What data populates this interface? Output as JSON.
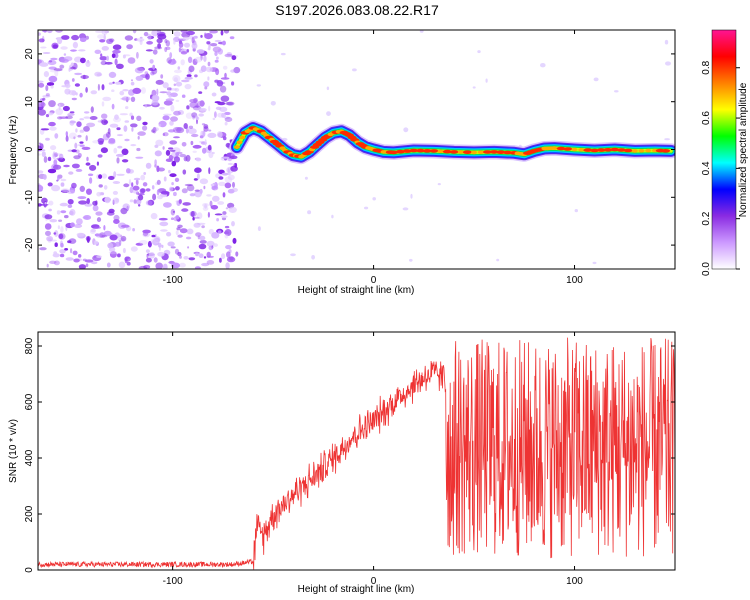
{
  "title": "S197.2026.083.08.22.R17",
  "chart_data": [
    {
      "type": "heatmap",
      "xlabel": "Height of straight line (km)",
      "ylabel": "Frequency (Hz)",
      "xlim": [
        -167,
        150
      ],
      "ylim": [
        -25,
        25
      ],
      "x_ticks": [
        -100,
        0,
        100
      ],
      "y_ticks": [
        -20,
        -10,
        0,
        10,
        20
      ],
      "grid": false,
      "noise_region": {
        "x_from": -167,
        "x_to": -68
      },
      "ridge": {
        "x": [
          -68,
          -64,
          -60,
          -56,
          -52,
          -48,
          -44,
          -40,
          -36,
          -32,
          -28,
          -24,
          -20,
          -16,
          -12,
          -8,
          -4,
          0,
          5,
          10,
          20,
          30,
          40,
          50,
          60,
          70,
          75,
          80,
          85,
          90,
          100,
          110,
          120,
          130,
          140,
          148
        ],
        "freq_hz": [
          0.5,
          3.5,
          4.5,
          3.8,
          2.5,
          1.2,
          -0.2,
          -1.2,
          -1.5,
          -0.5,
          1.0,
          2.5,
          3.5,
          3.8,
          3.0,
          1.5,
          0.5,
          0.0,
          -0.5,
          -0.6,
          -0.2,
          -0.3,
          -0.5,
          -0.6,
          -0.5,
          -0.7,
          -1.0,
          -0.3,
          0.2,
          0.3,
          0.0,
          -0.2,
          0.0,
          -0.3,
          -0.2,
          -0.3
        ]
      },
      "colorbar": {
        "label": "Normalized spectral amplitude",
        "range": [
          0,
          0.95
        ],
        "ticks": [
          0.0,
          0.2,
          0.4,
          0.6,
          0.8
        ],
        "tick_labels": [
          "0.0",
          "0.2",
          "0.4",
          "0.6",
          "0.8"
        ],
        "colormap": [
          "#ffffff",
          "#cc99ff",
          "#8a2be2",
          "#0000ff",
          "#00ffff",
          "#00ff00",
          "#ffff00",
          "#ff8000",
          "#ff0000",
          "#ff1493"
        ]
      }
    },
    {
      "type": "line",
      "xlabel": "Height of straight line (km)",
      "ylabel": "SNR (10 * v/v)",
      "xlim": [
        -167,
        150
      ],
      "ylim": [
        0,
        850
      ],
      "x_ticks": [
        -100,
        0,
        100
      ],
      "y_ticks": [
        0,
        200,
        400,
        600,
        800
      ],
      "grid": false,
      "series": [
        {
          "color": "#ee3333",
          "x": [
            -167,
            -120,
            -70,
            -60,
            -58,
            -55,
            -50,
            -40,
            -30,
            -20,
            -10,
            0,
            10,
            20,
            25,
            30,
            35,
            40,
            60,
            80,
            100,
            120,
            140,
            150
          ],
          "y": [
            20,
            20,
            20,
            30,
            150,
            120,
            200,
            270,
            330,
            400,
            480,
            530,
            600,
            660,
            690,
            700,
            690,
            450,
            450,
            450,
            450,
            450,
            450,
            450
          ]
        }
      ]
    }
  ]
}
